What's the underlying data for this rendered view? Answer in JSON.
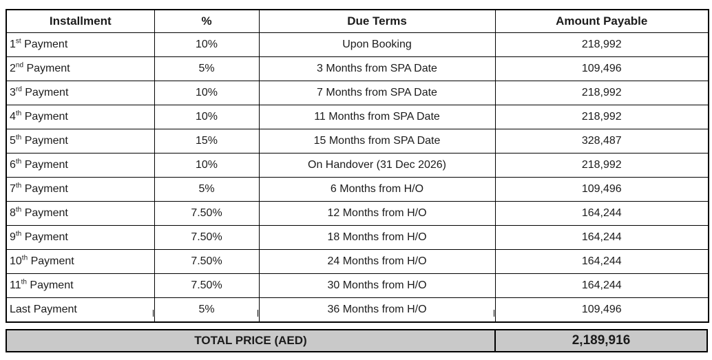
{
  "table": {
    "headers": [
      "Installment",
      "%",
      "Due Terms",
      "Amount Payable"
    ],
    "rows": [
      {
        "prefix": "1",
        "sup": "st",
        "word": "Payment",
        "percent": "10%",
        "due": "Upon Booking",
        "amount": "218,992"
      },
      {
        "prefix": "2",
        "sup": "nd",
        "word": "Payment",
        "percent": "5%",
        "due": "3 Months from SPA Date",
        "amount": "109,496"
      },
      {
        "prefix": "3",
        "sup": "rd",
        "word": "Payment",
        "percent": "10%",
        "due": "7 Months from SPA Date",
        "amount": "218,992"
      },
      {
        "prefix": "4",
        "sup": "th",
        "word": "Payment",
        "percent": "10%",
        "due": "11 Months from SPA Date",
        "amount": "218,992"
      },
      {
        "prefix": "5",
        "sup": "th",
        "word": "Payment",
        "percent": "15%",
        "due": "15 Months from SPA Date",
        "amount": "328,487"
      },
      {
        "prefix": "6",
        "sup": "th",
        "word": "Payment",
        "percent": "10%",
        "due": "On Handover (31 Dec 2026)",
        "amount": "218,992"
      },
      {
        "prefix": "7",
        "sup": "th",
        "word": "Payment",
        "percent": "5%",
        "due": "6 Months from H/O",
        "amount": "109,496"
      },
      {
        "prefix": "8",
        "sup": "th",
        "word": "Payment",
        "percent": "7.50%",
        "due": "12 Months from H/O",
        "amount": "164,244"
      },
      {
        "prefix": "9",
        "sup": "th",
        "word": "Payment",
        "percent": "7.50%",
        "due": "18 Months from H/O",
        "amount": "164,244"
      },
      {
        "prefix": "10",
        "sup": "th",
        "word": "Payment",
        "percent": "7.50%",
        "due": "24 Months from H/O",
        "amount": "164,244"
      },
      {
        "prefix": "11",
        "sup": "th",
        "word": "Payment",
        "percent": "7.50%",
        "due": "30 Months from H/O",
        "amount": "164,244"
      },
      {
        "prefix": "Last",
        "sup": "",
        "word": "Payment",
        "percent": "5%",
        "due": "36 Months from H/O",
        "amount": "109,496"
      }
    ]
  },
  "total": {
    "label": "TOTAL PRICE (AED)",
    "value": "2,189,916"
  },
  "colors": {
    "total_row_bg": "#c9c9c9",
    "border": "#000000",
    "text": "#1b1b1b"
  }
}
